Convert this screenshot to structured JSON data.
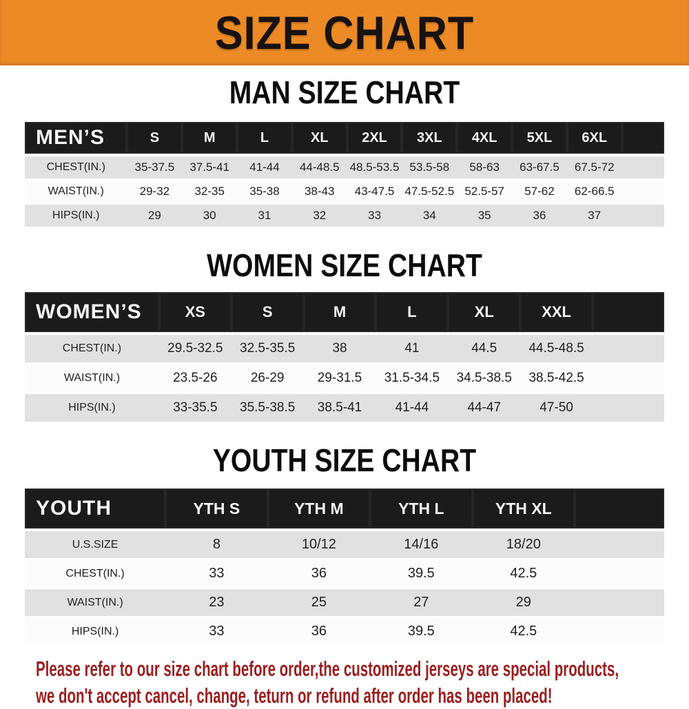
{
  "banner": {
    "title": "SIZE CHART",
    "bg_color": "#ec8b26",
    "text_color": "#181211"
  },
  "sections": [
    {
      "id": "men",
      "title": "MAN SIZE CHART",
      "table": {
        "label": "MEN’S",
        "columns": [
          "S",
          "M",
          "L",
          "XL",
          "2XL",
          "3XL",
          "4XL",
          "5XL",
          "6XL"
        ],
        "rows": [
          {
            "label": "CHEST(IN.)",
            "values": [
              "35-37.5",
              "37.5-41",
              "41-44",
              "44-48.5",
              "48.5-53.5",
              "53.5-58",
              "58-63",
              "63-67.5",
              "67.5-72"
            ]
          },
          {
            "label": "WAIST(IN.)",
            "values": [
              "29-32",
              "32-35",
              "35-38",
              "38-43",
              "43-47.5",
              "47.5-52.5",
              "52.5-57",
              "57-62",
              "62-66.5"
            ]
          },
          {
            "label": "HIPS(IN.)",
            "values": [
              "29",
              "30",
              "31",
              "32",
              "33",
              "34",
              "35",
              "36",
              "37"
            ]
          }
        ]
      }
    },
    {
      "id": "women",
      "title": "WOMEN SIZE CHART",
      "table": {
        "label": "WOMEN’S",
        "columns": [
          "XS",
          "S",
          "M",
          "L",
          "XL",
          "XXL"
        ],
        "rows": [
          {
            "label": "CHEST(IN.)",
            "values": [
              "29.5-32.5",
              "32.5-35.5",
              "38",
              "41",
              "44.5",
              "44.5-48.5"
            ]
          },
          {
            "label": "WAIST(IN.)",
            "values": [
              "23.5-26",
              "26-29",
              "29-31.5",
              "31.5-34.5",
              "34.5-38.5",
              "38.5-42.5"
            ]
          },
          {
            "label": "HIPS(IN.)",
            "values": [
              "33-35.5",
              "35.5-38.5",
              "38.5-41",
              "41-44",
              "44-47",
              "47-50"
            ]
          }
        ]
      }
    },
    {
      "id": "youth",
      "title": "YOUTH SIZE CHART",
      "table": {
        "label": "YOUTH",
        "columns": [
          "YTH S",
          "YTH M",
          "YTH L",
          "YTH XL"
        ],
        "rows": [
          {
            "label": "U.S.SIZE",
            "values": [
              "8",
              "10/12",
              "14/16",
              "18/20"
            ]
          },
          {
            "label": "CHEST(IN.)",
            "values": [
              "33",
              "36",
              "39.5",
              "42.5"
            ]
          },
          {
            "label": "WAIST(IN.)",
            "values": [
              "23",
              "25",
              "27",
              "29"
            ]
          },
          {
            "label": "HIPS(IN.)",
            "values": [
              "33",
              "36",
              "39.5",
              "42.5"
            ]
          }
        ]
      }
    }
  ],
  "footer": {
    "line1": "Please refer to our size chart before order,the customized jerseys are special products,",
    "line2": "we don't accept cancel, change, teturn or refund after order has been placed!",
    "text_color": "#9b1e1e"
  }
}
